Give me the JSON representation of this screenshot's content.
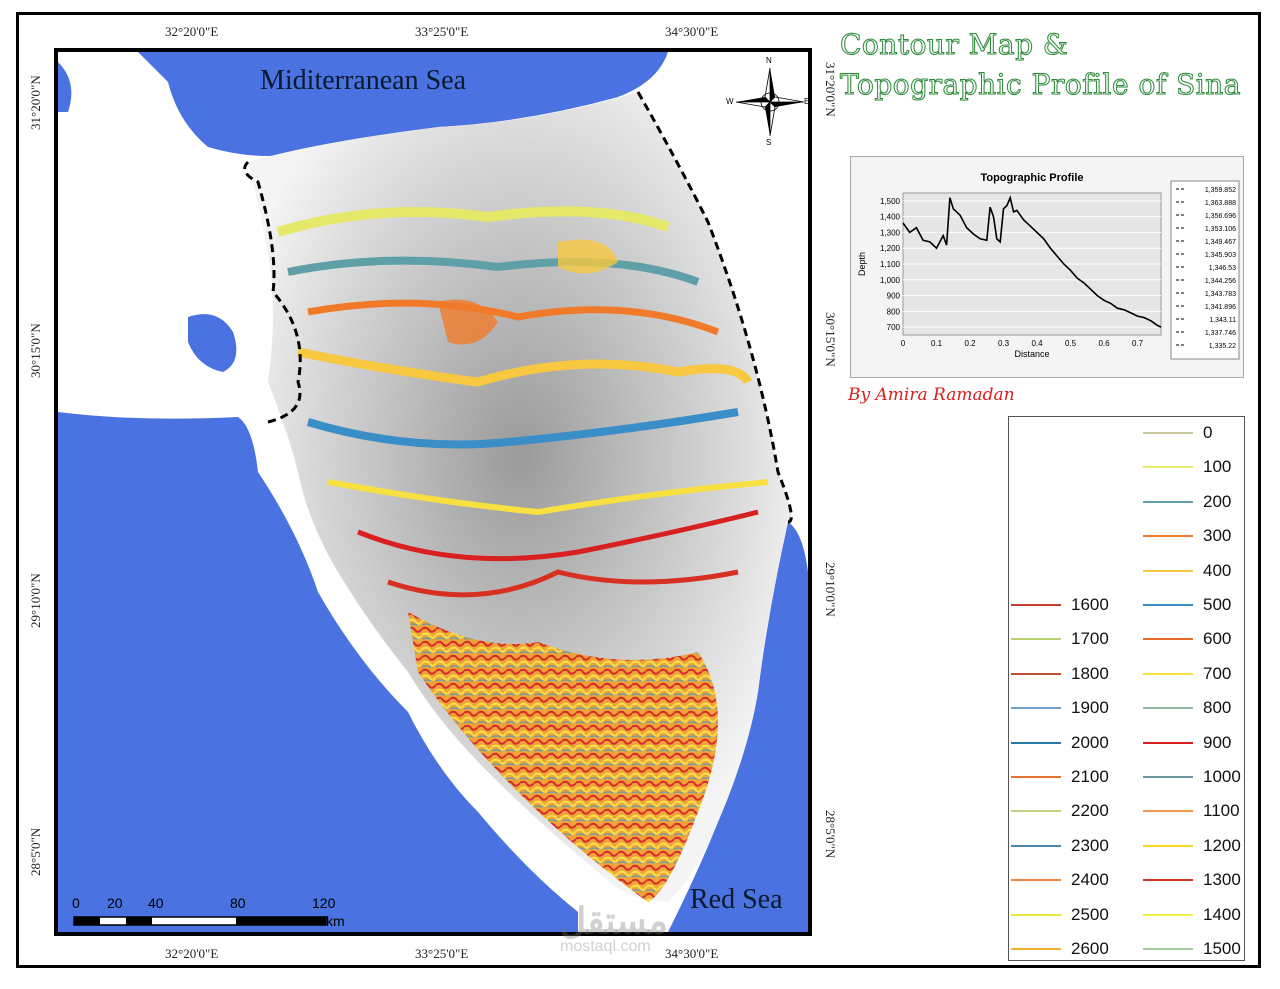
{
  "title": {
    "line1": "Contour Map &",
    "line2": "Topographic Profile of Sina"
  },
  "author": "By Amira Ramadan",
  "seas": {
    "north": "Miditerranean Sea",
    "south": "Red Sea"
  },
  "coords": {
    "top": [
      "32°20'0\"E",
      "33°25'0\"E",
      "34°30'0\"E"
    ],
    "bottom": [
      "32°20'0\"E",
      "33°25'0\"E",
      "34°30'0\"E"
    ],
    "left": [
      "31°20'0\"N",
      "30°15'0\"N",
      "29°10'0\"N",
      "28°5'0\"N"
    ],
    "right": [
      "31°20'0\"N",
      "30°15'0\"N",
      "29°10'0\"N",
      "28°5'0\"N"
    ]
  },
  "compass": {
    "n": "N",
    "s": "S",
    "e": "E",
    "w": "W"
  },
  "scale_bar": {
    "labels": [
      "0",
      "20",
      "40",
      "80",
      "120"
    ],
    "unit": "km"
  },
  "chart_data": {
    "type": "line",
    "title": "Topographic Profile",
    "xlabel": "Distance",
    "ylabel": "Depth",
    "xlim": [
      0,
      0.77
    ],
    "ylim": [
      650,
      1550
    ],
    "x_ticks": [
      "0",
      "0.1",
      "0.2",
      "0.3",
      "0.4",
      "0.5",
      "0.6",
      "0.7"
    ],
    "y_ticks": [
      "700",
      "800",
      "900",
      "1,000",
      "1,100",
      "1,200",
      "1,300",
      "1,400",
      "1,500"
    ],
    "x": [
      0,
      0.02,
      0.04,
      0.06,
      0.08,
      0.1,
      0.12,
      0.13,
      0.14,
      0.15,
      0.17,
      0.19,
      0.21,
      0.23,
      0.25,
      0.26,
      0.27,
      0.28,
      0.29,
      0.3,
      0.31,
      0.32,
      0.33,
      0.34,
      0.36,
      0.38,
      0.4,
      0.42,
      0.44,
      0.46,
      0.48,
      0.5,
      0.52,
      0.54,
      0.56,
      0.58,
      0.6,
      0.62,
      0.64,
      0.66,
      0.68,
      0.7,
      0.72,
      0.74,
      0.76,
      0.77
    ],
    "values": [
      1360,
      1300,
      1330,
      1250,
      1240,
      1200,
      1280,
      1220,
      1520,
      1450,
      1410,
      1330,
      1290,
      1260,
      1250,
      1460,
      1400,
      1260,
      1240,
      1450,
      1470,
      1520,
      1430,
      1440,
      1380,
      1340,
      1300,
      1260,
      1200,
      1150,
      1100,
      1060,
      1010,
      980,
      940,
      900,
      870,
      850,
      820,
      810,
      790,
      770,
      760,
      740,
      710,
      700
    ],
    "legend": [
      "1,359.852",
      "1,363.888",
      "1,356.696",
      "1,353.106",
      "1,349.467",
      "1,345.903",
      "1,346.53",
      "1,344.256",
      "1,343.783",
      "1,341.896",
      "1,343.11",
      "1,337.746",
      "1,335.22"
    ]
  },
  "legend_right": [
    {
      "label": "0",
      "color": "#c8c89a"
    },
    {
      "label": "100",
      "color": "#e6e86a"
    },
    {
      "label": "200",
      "color": "#5fa0a8"
    },
    {
      "label": "300",
      "color": "#f07a2a"
    },
    {
      "label": "400",
      "color": "#f8c840"
    },
    {
      "label": "500",
      "color": "#3a8ec8"
    },
    {
      "label": "600",
      "color": "#e86a2a"
    },
    {
      "label": "700",
      "color": "#f8e040"
    },
    {
      "label": "800",
      "color": "#8ab8a0"
    },
    {
      "label": "900",
      "color": "#d82020"
    },
    {
      "label": "1000",
      "color": "#6a9aa0"
    },
    {
      "label": "1100",
      "color": "#f09850"
    },
    {
      "label": "1200",
      "color": "#f8d820"
    },
    {
      "label": "1300",
      "color": "#d83020"
    },
    {
      "label": "1400",
      "color": "#f0f040"
    },
    {
      "label": "1500",
      "color": "#a8c8a0"
    }
  ],
  "legend_left": [
    {
      "label": "1600",
      "color": "#c84030"
    },
    {
      "label": "1700",
      "color": "#b8d070"
    },
    {
      "label": "1800",
      "color": "#c05030"
    },
    {
      "label": "1900",
      "color": "#70a0c8"
    },
    {
      "label": "2000",
      "color": "#2a7aa8"
    },
    {
      "label": "2100",
      "color": "#e87030"
    },
    {
      "label": "2200",
      "color": "#c8d080"
    },
    {
      "label": "2300",
      "color": "#4a8ab0"
    },
    {
      "label": "2400",
      "color": "#f08840"
    },
    {
      "label": "2500",
      "color": "#e8e840"
    },
    {
      "label": "2600",
      "color": "#f0b030"
    }
  ],
  "watermark": {
    "arabic": "مستقل",
    "latin": "mostaql.com"
  },
  "colors": {
    "sea": "#4a72e0",
    "land": "#ffffff",
    "title_stroke": "#2e8b3a",
    "author": "#d81e1e"
  }
}
